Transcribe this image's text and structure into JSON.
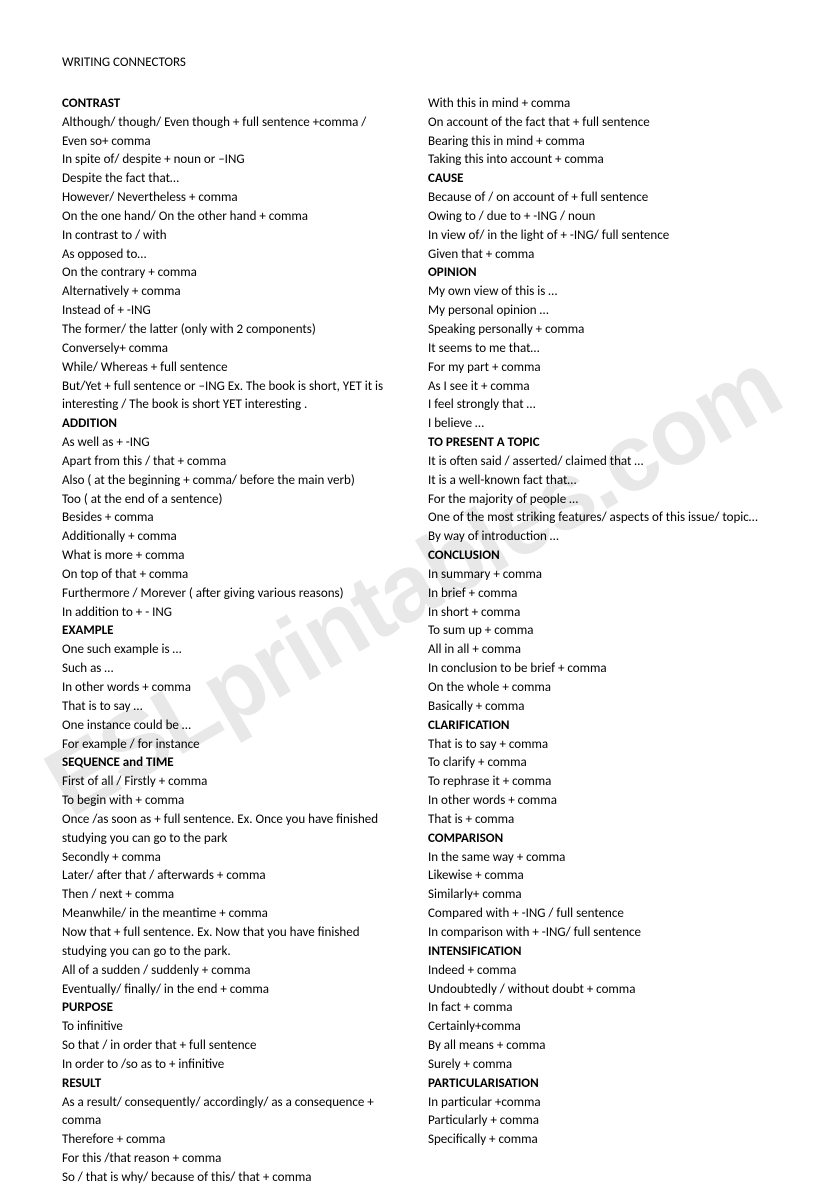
{
  "title": "WRITING CONNECTORS",
  "watermark": "ESLprintables.com",
  "left": [
    {
      "h": "CONTRAST"
    },
    {
      "t": "Although/ though/ Even though + full sentence +comma /"
    },
    {
      "t": "Even so+ comma"
    },
    {
      "t": "In spite of/ despite + noun or –ING"
    },
    {
      "t": "Despite the fact that…"
    },
    {
      "t": "However/ Nevertheless + comma"
    },
    {
      "t": "On the one hand/ On the other hand + comma"
    },
    {
      "t": "In contrast to / with"
    },
    {
      "t": "As opposed to…"
    },
    {
      "t": "On the contrary + comma"
    },
    {
      "t": "Alternatively + comma"
    },
    {
      "t": "Instead of + -ING"
    },
    {
      "t": "The former/ the latter  (only with 2 components)"
    },
    {
      "t": "Conversely+ comma"
    },
    {
      "t": "While/ Whereas + full sentence"
    },
    {
      "t": "But/Yet + full sentence or –ING  Ex.  The book is short, YET it is interesting / The book is short YET interesting ."
    },
    {
      "h": "ADDITION"
    },
    {
      "t": "As well as + -ING"
    },
    {
      "t": "Apart from this / that + comma"
    },
    {
      "t": "Also ( at the beginning + comma/ before the main verb)"
    },
    {
      "t": "Too ( at the end of a sentence)"
    },
    {
      "t": "Besides + comma"
    },
    {
      "t": "Additionally + comma"
    },
    {
      "t": "What is more + comma"
    },
    {
      "t": "On top of that + comma"
    },
    {
      "t": "Furthermore / Morever ( after giving various reasons)"
    },
    {
      "t": "In addition to + - ING"
    },
    {
      "h": "EXAMPLE"
    },
    {
      "t": "One such example is …"
    },
    {
      "t": "Such as …"
    },
    {
      "t": "In other words + comma"
    },
    {
      "t": "That is to say …"
    },
    {
      "t": "One instance could be …"
    },
    {
      "t": "For example / for instance"
    },
    {
      "h": "SEQUENCE and TIME"
    },
    {
      "t": "First of all / Firstly + comma"
    },
    {
      "t": "To begin with + comma"
    },
    {
      "t": "Once /as soon as + full sentence. Ex. Once you have finished studying you can go to the park"
    },
    {
      "t": "Secondly + comma"
    },
    {
      "t": "Later/ after that / afterwards + comma"
    },
    {
      "t": "Then / next + comma"
    },
    {
      "t": "Meanwhile/ in the meantime + comma"
    },
    {
      "t": "Now that + full sentence. Ex. Now that you have finished studying you can go to the park."
    },
    {
      "t": "All of a sudden / suddenly + comma"
    },
    {
      "t": "Eventually/ finally/ in the end + comma"
    },
    {
      "h": "PURPOSE"
    },
    {
      "t": "To infinitive"
    },
    {
      "t": "So that / in order that + full sentence"
    },
    {
      "t": "In order to /so as to + infinitive"
    },
    {
      "h": "RESULT"
    },
    {
      "t": "As a result/ consequently/ accordingly/ as a consequence + comma"
    },
    {
      "t": "Therefore + comma"
    },
    {
      "t": "For this /that reason + comma"
    },
    {
      "t": "So / that is why/ because of this/ that + comma"
    }
  ],
  "right": [
    {
      "t": "With this in mind + comma"
    },
    {
      "t": "On account of the fact that + full sentence"
    },
    {
      "t": "Bearing this in mind + comma"
    },
    {
      "t": "Taking this into account + comma"
    },
    {
      "h": "CAUSE"
    },
    {
      "t": "Because of / on account of + full sentence"
    },
    {
      "t": "Owing to / due to + -ING / noun"
    },
    {
      "t": "In view of/ in the light of + -ING/ full sentence"
    },
    {
      "t": "Given that + comma"
    },
    {
      "h": "OPINION"
    },
    {
      "t": "My own view of this is …"
    },
    {
      "t": "My personal opinion …"
    },
    {
      "t": "Speaking personally + comma"
    },
    {
      "t": "It seems to me that…"
    },
    {
      "t": "For my part + comma"
    },
    {
      "t": "As I see it + comma"
    },
    {
      "t": "I feel strongly that …"
    },
    {
      "t": "I believe …"
    },
    {
      "h": "TO PRESENT A TOPIC"
    },
    {
      "t": "It is often said / asserted/ claimed that …"
    },
    {
      "t": "It is a well-known fact that…"
    },
    {
      "t": "For the majority of people …"
    },
    {
      "t": "One of the most striking features/ aspects of this issue/ topic…"
    },
    {
      "t": "By way of introduction …"
    },
    {
      "h": "CONCLUSION"
    },
    {
      "t": "In summary + comma"
    },
    {
      "t": "In brief + comma"
    },
    {
      "t": "In short + comma"
    },
    {
      "t": "To sum up + comma"
    },
    {
      "t": "All in all + comma"
    },
    {
      "t": "In conclusion to be brief + comma"
    },
    {
      "t": "On the whole + comma"
    },
    {
      "t": "Basically + comma"
    },
    {
      "h": "CLARIFICATION"
    },
    {
      "t": "That is to say + comma"
    },
    {
      "t": "To clarify + comma"
    },
    {
      "t": "To rephrase it + comma"
    },
    {
      "t": "In other words + comma"
    },
    {
      "t": "That is + comma"
    },
    {
      "h": "COMPARISON"
    },
    {
      "t": "In the same way + comma"
    },
    {
      "t": "Likewise + comma"
    },
    {
      "t": "Similarly+ comma"
    },
    {
      "t": "Compared with + -ING / full sentence"
    },
    {
      "t": "In comparison with + -ING/ full sentence"
    },
    {
      "h": "INTENSIFICATION"
    },
    {
      "t": "Indeed + comma"
    },
    {
      "t": "Undoubtedly / without doubt + comma"
    },
    {
      "t": "In fact + comma"
    },
    {
      "t": "Certainly+comma"
    },
    {
      "t": "By all means + comma"
    },
    {
      "t": "Surely + comma"
    },
    {
      "h": "PARTICULARISATION"
    },
    {
      "t": "In particular +comma"
    },
    {
      "t": "Particularly + comma"
    },
    {
      "t": "Specifically + comma"
    }
  ]
}
